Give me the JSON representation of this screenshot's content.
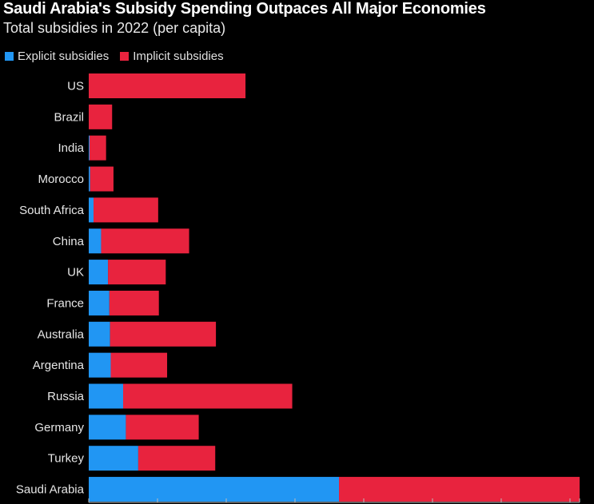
{
  "chart_data": {
    "type": "bar",
    "orientation": "horizontal",
    "stacked": true,
    "title": "Saudi Arabia's Subsidy Spending Outpaces All Major Economies",
    "subtitle": "Total subsidies in 2022 (per capita)",
    "categories": [
      "US",
      "Brazil",
      "India",
      "Morocco",
      "South Africa",
      "China",
      "UK",
      "France",
      "Australia",
      "Argentina",
      "Russia",
      "Germany",
      "Turkey",
      "Saudi Arabia"
    ],
    "series": [
      {
        "name": "Explicit subsidies",
        "color": "#2196f3",
        "values": [
          0,
          0,
          60,
          100,
          350,
          900,
          1400,
          1500,
          1550,
          1600,
          2500,
          2700,
          3600,
          18200
        ]
      },
      {
        "name": "Implicit subsidies",
        "color": "#e8233e",
        "values": [
          11400,
          1700,
          1200,
          1700,
          4700,
          6400,
          4200,
          3600,
          7700,
          4100,
          12300,
          5300,
          5600,
          17500
        ]
      }
    ],
    "xlim": [
      0,
      35700
    ],
    "legend_position": "top-left",
    "grid": false
  }
}
